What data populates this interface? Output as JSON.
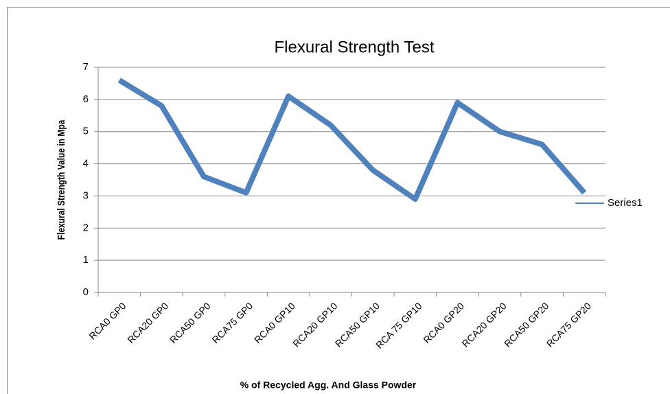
{
  "chart_data": {
    "type": "line",
    "title": "Flexural Strength Test",
    "y_label": "Flexural Strength Value in Mpa",
    "x_label": "% of Recycled Agg. And Glass Powder",
    "categories": [
      "RCA0 GP0",
      "RCA20 GP0",
      "RCA50 GP0",
      "RCA75 GP0",
      "RCA0 GP10",
      "RCA20 GP10",
      "RCA50 GP10",
      "RCA 75 GP10",
      "RCA0 GP20",
      "RCA20 GP20",
      "RCA50 GP20",
      "RCA75 GP20"
    ],
    "series": [
      {
        "name": "Series1",
        "color": "#4f81bd",
        "values": [
          6.6,
          5.8,
          3.6,
          3.1,
          6.1,
          5.2,
          3.8,
          2.9,
          5.9,
          5.0,
          4.6,
          3.1
        ]
      }
    ],
    "ylim": [
      0,
      7
    ],
    "yticks": [
      0,
      1,
      2,
      3,
      4,
      5,
      6,
      7
    ],
    "grid": true,
    "legend": "right"
  }
}
